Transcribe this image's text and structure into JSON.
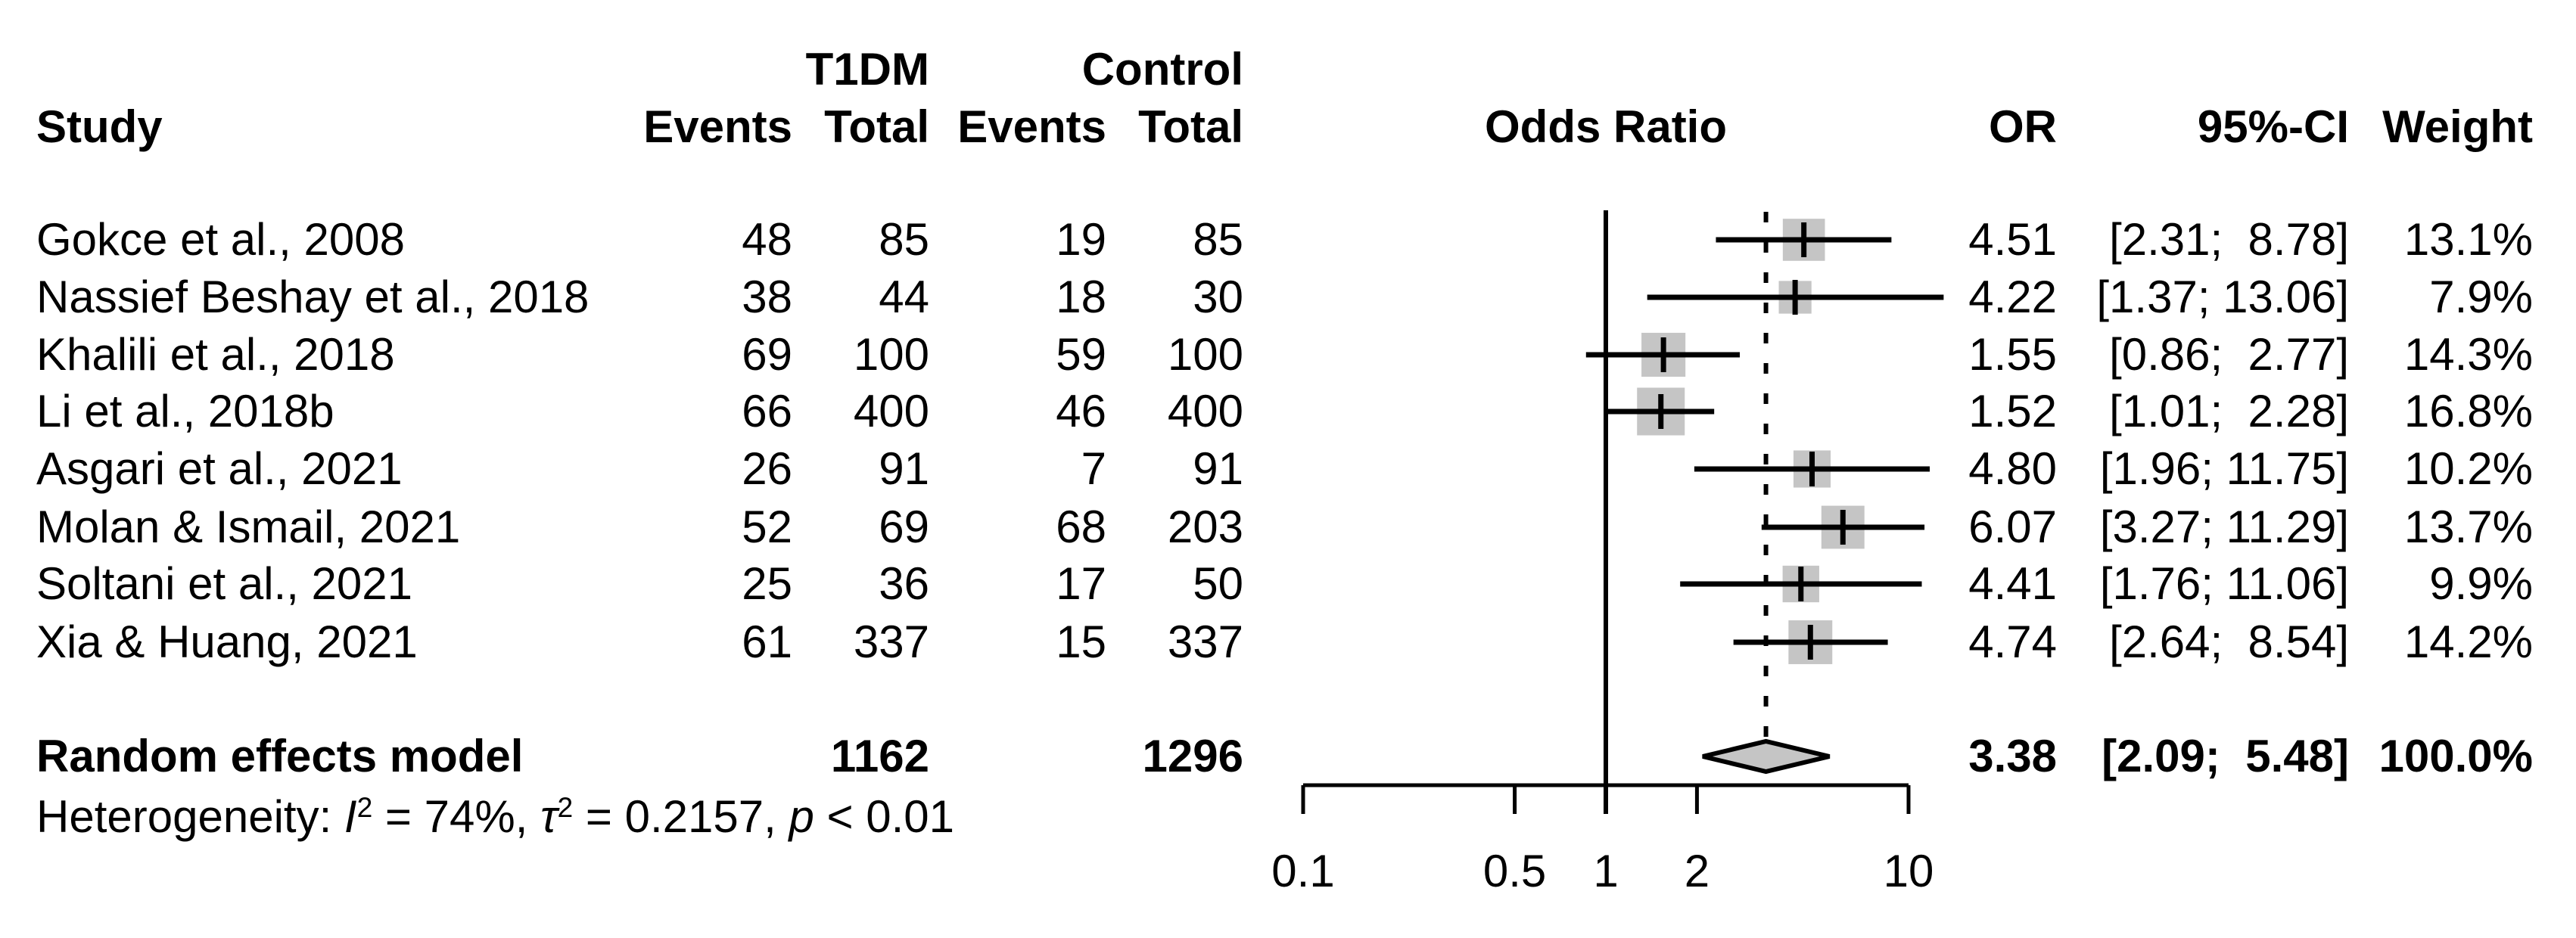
{
  "chart_data": {
    "type": "forest",
    "title": "Odds Ratio",
    "x_scale": "log10",
    "x_axis": {
      "ticks": [
        0.1,
        0.5,
        1,
        2,
        10
      ],
      "tick_labels": [
        "0.1",
        "0.5",
        "1",
        "2",
        "10"
      ],
      "range_shown": [
        0.1,
        10
      ],
      "reference_line": 1
    },
    "columns": {
      "study": "Study",
      "group1": "T1DM",
      "group2": "Control",
      "events": "Events",
      "total": "Total",
      "odds_ratio_header": "Odds Ratio",
      "or": "OR",
      "ci": "95%-CI",
      "weight": "Weight"
    },
    "studies": [
      {
        "name": "Gokce et al., 2008",
        "events1": "48",
        "total1": "85",
        "events2": "19",
        "total2": "85",
        "or": 4.51,
        "ci_low": 2.31,
        "ci_high": 8.78,
        "or_text": "4.51",
        "ci_text": "[2.31;  8.78]",
        "weight": 13.1,
        "weight_text": "13.1%"
      },
      {
        "name": "Nassief Beshay et al., 2018",
        "events1": "38",
        "total1": "44",
        "events2": "18",
        "total2": "30",
        "or": 4.22,
        "ci_low": 1.37,
        "ci_high": 13.06,
        "or_text": "4.22",
        "ci_text": "[1.37; 13.06]",
        "weight": 7.9,
        "weight_text": "7.9%"
      },
      {
        "name": "Khalili et al., 2018",
        "events1": "69",
        "total1": "100",
        "events2": "59",
        "total2": "100",
        "or": 1.55,
        "ci_low": 0.86,
        "ci_high": 2.77,
        "or_text": "1.55",
        "ci_text": "[0.86;  2.77]",
        "weight": 14.3,
        "weight_text": "14.3%"
      },
      {
        "name": "Li et al., 2018b",
        "events1": "66",
        "total1": "400",
        "events2": "46",
        "total2": "400",
        "or": 1.52,
        "ci_low": 1.01,
        "ci_high": 2.28,
        "or_text": "1.52",
        "ci_text": "[1.01;  2.28]",
        "weight": 16.8,
        "weight_text": "16.8%"
      },
      {
        "name": "Asgari et al., 2021",
        "events1": "26",
        "total1": "91",
        "events2": "7",
        "total2": "91",
        "or": 4.8,
        "ci_low": 1.96,
        "ci_high": 11.75,
        "or_text": "4.80",
        "ci_text": "[1.96; 11.75]",
        "weight": 10.2,
        "weight_text": "10.2%"
      },
      {
        "name": "Molan & Ismail, 2021",
        "events1": "52",
        "total1": "69",
        "events2": "68",
        "total2": "203",
        "or": 6.07,
        "ci_low": 3.27,
        "ci_high": 11.29,
        "or_text": "6.07",
        "ci_text": "[3.27; 11.29]",
        "weight": 13.7,
        "weight_text": "13.7%"
      },
      {
        "name": "Soltani et al., 2021",
        "events1": "25",
        "total1": "36",
        "events2": "17",
        "total2": "50",
        "or": 4.41,
        "ci_low": 1.76,
        "ci_high": 11.06,
        "or_text": "4.41",
        "ci_text": "[1.76; 11.06]",
        "weight": 9.9,
        "weight_text": "9.9%"
      },
      {
        "name": "Xia & Huang, 2021",
        "events1": "61",
        "total1": "337",
        "events2": "15",
        "total2": "337",
        "or": 4.74,
        "ci_low": 2.64,
        "ci_high": 8.54,
        "or_text": "4.74",
        "ci_text": "[2.64;  8.54]",
        "weight": 14.2,
        "weight_text": "14.2%"
      }
    ],
    "pooled": {
      "label": "Random effects model",
      "total1": "1162",
      "total2": "1296",
      "or": 3.38,
      "ci_low": 2.09,
      "ci_high": 5.48,
      "or_text": "3.38",
      "ci_text": "[2.09;  5.48]",
      "weight_text": "100.0%"
    },
    "heterogeneity": {
      "prefix": "Heterogeneity: ",
      "i_label": "I",
      "i_sup": "2",
      "seg1": " = 74%, ",
      "tau_label": "τ",
      "tau_sup": "2",
      "seg2": " = 0.2157, ",
      "p_label": "p",
      "seg3": " < 0.01"
    },
    "colors": {
      "square": "#c5c5c5",
      "diamond_fill": "#c5c5c5",
      "line": "#000000"
    },
    "legend_position": "none",
    "grid": false
  }
}
